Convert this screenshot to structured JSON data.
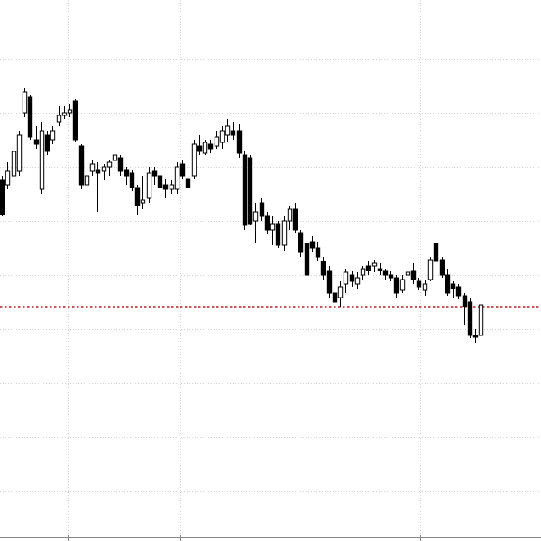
{
  "chart_data": {
    "type": "candlestick",
    "categories": [
      null,
      null,
      null,
      null,
      null,
      null,
      null,
      null,
      null,
      null,
      null,
      null,
      null,
      null,
      null,
      null,
      null,
      null,
      null,
      null,
      null,
      null,
      null,
      null,
      null,
      null,
      null,
      null,
      null,
      null,
      null,
      null,
      null,
      null,
      null,
      null,
      null,
      null,
      null,
      null,
      null,
      null,
      null,
      null,
      null,
      null,
      null,
      null,
      null,
      null,
      null,
      null,
      null,
      null,
      null,
      null,
      null,
      null,
      null,
      null,
      null,
      null,
      null,
      null,
      null,
      null,
      null,
      null,
      null,
      null,
      null,
      null,
      null,
      null,
      null,
      null,
      null,
      null,
      null,
      null,
      null,
      null,
      null,
      null,
      null,
      null
    ],
    "open": [
      400,
      395,
      405,
      410,
      475,
      492,
      445,
      390,
      450,
      445,
      465,
      472,
      475,
      488,
      438,
      395,
      410,
      412,
      410,
      415,
      422,
      425,
      412,
      408,
      392,
      375,
      380,
      410,
      405,
      395,
      390,
      390,
      418,
      402,
      405,
      438,
      430,
      440,
      438,
      442,
      450,
      455,
      455,
      428,
      425,
      355,
      375,
      360,
      345,
      352,
      328,
      355,
      368,
      342,
      330,
      332,
      325,
      310,
      300,
      275,
      270,
      285,
      295,
      285,
      295,
      305,
      305,
      302,
      300,
      295,
      292,
      278,
      295,
      300,
      288,
      278,
      290,
      330,
      312,
      295,
      285,
      282,
      272,
      265,
      228,
      228
    ],
    "high": [
      405,
      420,
      435,
      455,
      502,
      495,
      460,
      465,
      455,
      460,
      482,
      482,
      485,
      490,
      440,
      410,
      422,
      420,
      418,
      422,
      435,
      428,
      415,
      412,
      395,
      405,
      415,
      415,
      410,
      402,
      400,
      420,
      422,
      408,
      445,
      450,
      445,
      445,
      455,
      460,
      468,
      465,
      462,
      432,
      428,
      375,
      380,
      365,
      360,
      355,
      360,
      372,
      375,
      345,
      335,
      338,
      332,
      315,
      305,
      280,
      288,
      302,
      300,
      298,
      305,
      310,
      312,
      308,
      302,
      300,
      295,
      295,
      302,
      308,
      292,
      290,
      315,
      332,
      315,
      302,
      288,
      285,
      275,
      270,
      235,
      265
    ],
    "low": [
      360,
      390,
      400,
      405,
      470,
      445,
      435,
      385,
      428,
      440,
      460,
      468,
      470,
      442,
      390,
      385,
      405,
      365,
      400,
      405,
      405,
      405,
      395,
      388,
      362,
      368,
      375,
      395,
      388,
      380,
      385,
      385,
      402,
      390,
      402,
      428,
      428,
      430,
      435,
      435,
      442,
      445,
      425,
      345,
      350,
      330,
      355,
      340,
      328,
      325,
      322,
      345,
      342,
      315,
      290,
      320,
      310,
      290,
      270,
      262,
      260,
      275,
      282,
      280,
      290,
      295,
      298,
      295,
      290,
      288,
      270,
      275,
      290,
      285,
      278,
      272,
      288,
      308,
      292,
      272,
      270,
      268,
      240,
      225,
      220,
      212
    ],
    "close": [
      362,
      410,
      432,
      450,
      498,
      448,
      440,
      455,
      432,
      455,
      472,
      475,
      478,
      445,
      395,
      405,
      418,
      408,
      415,
      420,
      428,
      410,
      405,
      392,
      372,
      378,
      408,
      405,
      392,
      390,
      395,
      415,
      405,
      392,
      440,
      432,
      442,
      435,
      448,
      455,
      460,
      450,
      430,
      350,
      352,
      365,
      360,
      345,
      352,
      328,
      355,
      368,
      345,
      320,
      295,
      325,
      315,
      295,
      275,
      265,
      282,
      298,
      288,
      292,
      302,
      300,
      308,
      300,
      295,
      292,
      275,
      290,
      298,
      290,
      282,
      285,
      312,
      310,
      295,
      275,
      280,
      272,
      260,
      228,
      226,
      262
    ],
    "up_color": "#ffffff",
    "down_color": "#000000",
    "price_line": 260,
    "price_line_color": "#b22222",
    "ylim": [
      0,
      600
    ],
    "yticks": [
      55,
      115,
      175,
      235,
      295,
      355,
      415,
      475,
      535
    ],
    "xlim": [
      -0.32,
      95.68
    ],
    "xticks": [
      11.7,
      31.7,
      54.1,
      74.2
    ],
    "grid": true
  }
}
